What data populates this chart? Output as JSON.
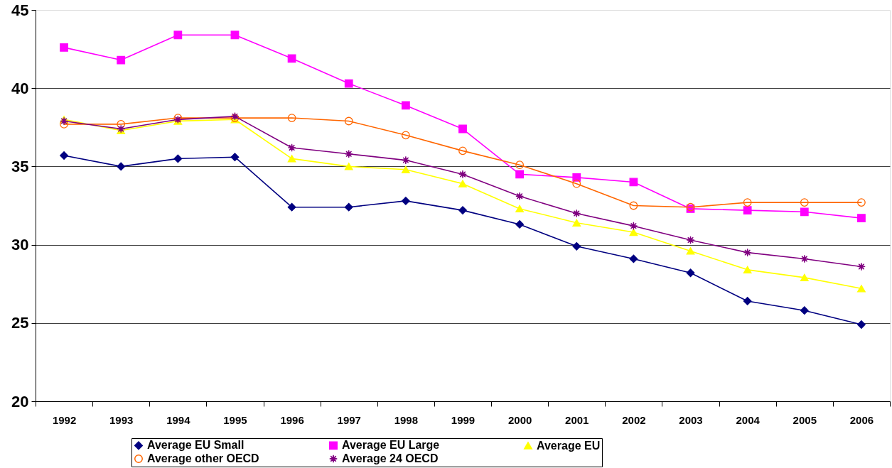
{
  "chart_data": {
    "type": "line",
    "categories": [
      "1992",
      "1993",
      "1994",
      "1995",
      "1996",
      "1997",
      "1998",
      "1999",
      "2000",
      "2001",
      "2002",
      "2003",
      "2004",
      "2005",
      "2006"
    ],
    "series": [
      {
        "name": "Average EU Small",
        "color": "#000080",
        "marker": "diamond",
        "values": [
          35.7,
          35.0,
          35.5,
          35.6,
          32.4,
          32.4,
          32.8,
          32.2,
          31.3,
          29.9,
          29.1,
          28.2,
          26.4,
          25.8,
          24.9
        ]
      },
      {
        "name": "Average EU Large",
        "color": "#ff00ff",
        "marker": "square",
        "values": [
          42.6,
          41.8,
          43.4,
          43.4,
          41.9,
          40.3,
          38.9,
          37.4,
          34.5,
          34.3,
          34.0,
          32.3,
          32.2,
          32.1,
          31.7
        ]
      },
      {
        "name": "Average EU",
        "color": "#ffff00",
        "marker": "triangle",
        "values": [
          38.0,
          37.3,
          37.9,
          38.0,
          35.5,
          35.0,
          34.8,
          33.9,
          32.3,
          31.4,
          30.8,
          29.6,
          28.4,
          27.9,
          27.2
        ]
      },
      {
        "name": "Average other OECD",
        "color": "#ff6600",
        "marker": "circle",
        "values": [
          37.7,
          37.7,
          38.1,
          38.1,
          38.1,
          37.9,
          37.0,
          36.0,
          35.1,
          33.9,
          32.5,
          32.4,
          32.7,
          32.7,
          32.7
        ]
      },
      {
        "name": "Average 24 OECD",
        "color": "#800080",
        "marker": "star",
        "values": [
          37.9,
          37.4,
          38.0,
          38.2,
          36.2,
          35.8,
          35.4,
          34.5,
          33.1,
          32.0,
          31.2,
          30.3,
          29.5,
          29.1,
          28.6
        ]
      }
    ],
    "ylim": [
      20,
      45
    ],
    "yticks": [
      20,
      25,
      30,
      35,
      40,
      45
    ],
    "grid": "y",
    "legend": "bottom",
    "line_style": "solid"
  }
}
